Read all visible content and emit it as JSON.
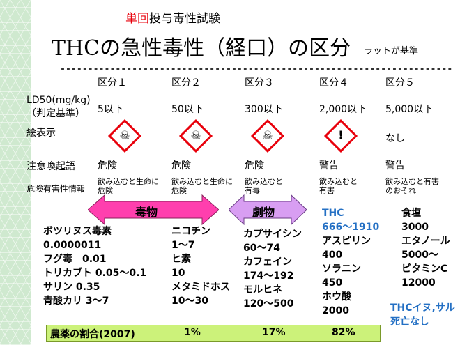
{
  "header": {
    "subtitle_accent": "単回",
    "subtitle_rest": "投与毒性試験",
    "title": "THCの急性毒性（経口）の区分",
    "note": "ラットが基準"
  },
  "categories": [
    "区分１",
    "区分２",
    "区分３",
    "区分４",
    "区分５"
  ],
  "row_labels": {
    "ld50": "LD50(mg/kg)",
    "ld50_sub": "（判定基準）",
    "pictogram": "絵表示",
    "signal": "注意喚起語",
    "hazard": "危険有害性情報"
  },
  "ld50_values": [
    "5以下",
    "50以下",
    "300以下",
    "2,000以下",
    "5,000以下"
  ],
  "pictograms": [
    "skull-crossbones",
    "skull-crossbones",
    "skull-crossbones",
    "exclamation",
    "なし"
  ],
  "signal_words": [
    "危険",
    "危険",
    "危険",
    "警告",
    "警告"
  ],
  "hazard_statements": [
    "飲み込むと生命に危険",
    "飲み込むと生命に危険",
    "飲み込むと有毒",
    "飲み込むと有害",
    "飲み込むと有害のおそれ"
  ],
  "arrows": {
    "poison": {
      "label": "毒物",
      "color": "#ff3fae"
    },
    "deleterious": {
      "label": "劇物",
      "color": "#d89ef2"
    }
  },
  "examples": {
    "col1": [
      "ボツリヌス毒素",
      "0.0000011",
      "フグ毒　0.01",
      "トリカブト 0.05〜0.1",
      "サリン 0.35",
      "青酸カリ 3〜7"
    ],
    "col2": [
      "ニコチン",
      "1〜7",
      "ヒ素",
      "10",
      "メタミドホス",
      "10〜30"
    ],
    "col3": [
      "カプサイシン",
      "60〜74",
      "カフェイン",
      "174〜192",
      "モルヒネ",
      "120〜500"
    ],
    "col4_blue": [
      "THC",
      "666〜1910"
    ],
    "col4": [
      "アスピリン",
      "400",
      "ソラニン",
      "450",
      "ホウ酸",
      "2000"
    ],
    "col5": [
      "食塩",
      "3000",
      "エタノール",
      "5000〜",
      "ビタミンC",
      "12000"
    ],
    "col5_note": [
      "THCイヌ,サル",
      "死亡なし"
    ]
  },
  "footer": {
    "label": "農薬の割合(2007)",
    "values": [
      "1%",
      "17%",
      "82%"
    ]
  },
  "colors": {
    "accent_red": "#e8000b",
    "blue": "#2470c4",
    "footer_bg": "#ccf27a"
  }
}
